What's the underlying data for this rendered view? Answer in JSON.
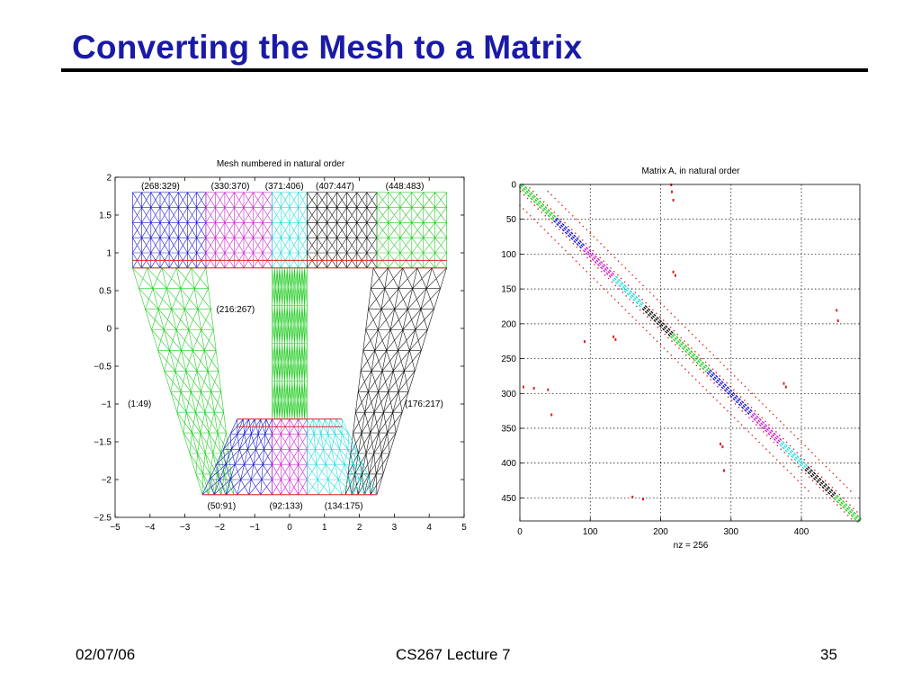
{
  "slide": {
    "title": "Converting the Mesh to a Matrix",
    "footer_date": "02/07/06",
    "footer_course": "CS267 Lecture 7",
    "page_number": "35"
  },
  "chart_data": [
    {
      "type": "diagram",
      "title": "Mesh numbered in natural order",
      "xlim": [
        -5,
        5
      ],
      "ylim": [
        -2.5,
        2
      ],
      "xticks": [
        -5,
        -4,
        -3,
        -2,
        -1,
        0,
        1,
        2,
        3,
        4,
        5
      ],
      "xtick_labels": [
        "−5",
        "−4",
        "−3",
        "−2",
        "−1",
        "0",
        "1",
        "2",
        "3",
        "4",
        "5"
      ],
      "yticks": [
        2,
        1.5,
        1,
        0.5,
        0,
        -0.5,
        -1,
        -1.5,
        -2,
        -2.5
      ],
      "ytick_labels": [
        "2",
        "1.5",
        "1",
        "0.5",
        "0",
        "−0.5",
        "−1",
        "−1.5",
        "−2",
        "−2.5"
      ],
      "colors": {
        "blue": "#1a1acc",
        "magenta": "#cc22cc",
        "cyan": "#22dddd",
        "black": "#111111",
        "green": "#22cc22",
        "red": "#dd2222"
      },
      "blocks": [
        {
          "label": "(268:329)",
          "color": "blue",
          "label_x": -3.7,
          "label_y": 1.88,
          "shape": [
            [
              -4.5,
              0.8
            ],
            [
              -2.4,
              0.8
            ],
            [
              -2.4,
              1.8
            ],
            [
              -4.5,
              1.8
            ]
          ],
          "cols": 8,
          "rows": 5
        },
        {
          "label": "(330:370)",
          "color": "magenta",
          "label_x": -1.7,
          "label_y": 1.88,
          "shape": [
            [
              -2.4,
              0.8
            ],
            [
              -0.5,
              0.8
            ],
            [
              -0.5,
              1.8
            ],
            [
              -2.4,
              1.8
            ]
          ],
          "cols": 7,
          "rows": 5
        },
        {
          "label": "(371:406)",
          "color": "cyan",
          "label_x": -0.15,
          "label_y": 1.88,
          "shape": [
            [
              -0.5,
              0.8
            ],
            [
              0.5,
              0.8
            ],
            [
              0.5,
              1.8
            ],
            [
              -0.5,
              1.8
            ]
          ],
          "cols": 4,
          "rows": 5
        },
        {
          "label": "(407:447)",
          "color": "black",
          "label_x": 1.3,
          "label_y": 1.88,
          "shape": [
            [
              0.5,
              0.8
            ],
            [
              2.5,
              0.8
            ],
            [
              2.5,
              1.8
            ],
            [
              0.5,
              1.8
            ]
          ],
          "cols": 7,
          "rows": 5
        },
        {
          "label": "(448:483)",
          "color": "green",
          "label_x": 3.3,
          "label_y": 1.88,
          "shape": [
            [
              2.5,
              0.8
            ],
            [
              4.5,
              0.8
            ],
            [
              4.5,
              1.8
            ],
            [
              2.5,
              1.8
            ]
          ],
          "cols": 6,
          "rows": 5
        },
        {
          "label": "(216:267)",
          "color": "green",
          "label_x": -1.55,
          "label_y": 0.25,
          "shape": [
            [
              -0.5,
              -1.2
            ],
            [
              -0.5,
              0.8
            ],
            [
              0.5,
              0.8
            ],
            [
              0.5,
              -1.2
            ]
          ],
          "cols": 4,
          "rows": 14
        },
        {
          "label": "(1:49)",
          "color": "green",
          "label_x": -4.3,
          "label_y": -1.0,
          "shape": [
            [
              -2.5,
              -2.2
            ],
            [
              -1.6,
              -2.2
            ],
            [
              -2.4,
              0.8
            ],
            [
              -4.5,
              0.8
            ]
          ],
          "cols": 5,
          "rows": 11
        },
        {
          "label": "(176:217)",
          "color": "black",
          "label_x": 3.85,
          "label_y": -1.0,
          "shape": [
            [
              1.6,
              -2.2
            ],
            [
              2.5,
              -2.2
            ],
            [
              4.5,
              0.8
            ],
            [
              2.4,
              0.8
            ]
          ],
          "cols": 5,
          "rows": 11
        },
        {
          "label": "(50:91)",
          "color": "blue",
          "label_x": -1.95,
          "label_y": -2.35,
          "shape": [
            [
              -2.5,
              -2.2
            ],
            [
              -0.5,
              -2.2
            ],
            [
              -0.5,
              -1.2
            ],
            [
              -1.5,
              -1.2
            ]
          ],
          "cols": 6,
          "rows": 5
        },
        {
          "label": "(92:133)",
          "color": "magenta",
          "label_x": -0.1,
          "label_y": -2.35,
          "shape": [
            [
              -0.5,
              -2.2
            ],
            [
              0.5,
              -2.2
            ],
            [
              0.5,
              -1.2
            ],
            [
              -0.5,
              -1.2
            ]
          ],
          "cols": 4,
          "rows": 5
        },
        {
          "label": "(134:175)",
          "color": "cyan",
          "label_x": 1.55,
          "label_y": -2.35,
          "shape": [
            [
              0.5,
              -2.2
            ],
            [
              2.5,
              -2.2
            ],
            [
              1.5,
              -1.2
            ],
            [
              0.5,
              -1.2
            ]
          ],
          "cols": 6,
          "rows": 5
        }
      ],
      "separators": [
        {
          "color": "red",
          "x1": -4.5,
          "y1": 0.8,
          "x2": 4.5,
          "y2": 0.8
        },
        {
          "color": "red",
          "x1": -4.5,
          "y1": 0.9,
          "x2": 4.5,
          "y2": 0.9
        },
        {
          "color": "red",
          "x1": -2.5,
          "y1": -2.2,
          "x2": 2.5,
          "y2": -2.2
        },
        {
          "color": "red",
          "x1": -1.5,
          "y1": -1.2,
          "x2": 1.5,
          "y2": -1.2
        },
        {
          "color": "red",
          "x1": -1.5,
          "y1": -1.3,
          "x2": 1.5,
          "y2": -1.3
        }
      ]
    },
    {
      "type": "scatter",
      "title": "Matrix A, in natural order",
      "xlabel": "nz = 256",
      "xlim": [
        0,
        483
      ],
      "ylim": [
        0,
        483
      ],
      "y_inverted": true,
      "grid": true,
      "xticks": [
        0,
        100,
        200,
        300,
        400
      ],
      "yticks": [
        0,
        50,
        100,
        150,
        200,
        250,
        300,
        350,
        400,
        450
      ],
      "colors": {
        "blue": "#1a1acc",
        "magenta": "#cc22cc",
        "cyan": "#22dddd",
        "black": "#111111",
        "green": "#22cc22",
        "red": "#dd2222"
      },
      "diagonal_blocks": [
        {
          "start": 1,
          "end": 49,
          "color": "green"
        },
        {
          "start": 50,
          "end": 91,
          "color": "blue"
        },
        {
          "start": 92,
          "end": 133,
          "color": "magenta"
        },
        {
          "start": 134,
          "end": 175,
          "color": "cyan"
        },
        {
          "start": 176,
          "end": 217,
          "color": "black"
        },
        {
          "start": 216,
          "end": 267,
          "color": "green"
        },
        {
          "start": 268,
          "end": 329,
          "color": "blue"
        },
        {
          "start": 330,
          "end": 370,
          "color": "magenta"
        },
        {
          "start": 371,
          "end": 406,
          "color": "cyan"
        },
        {
          "start": 407,
          "end": 447,
          "color": "black"
        },
        {
          "start": 448,
          "end": 483,
          "color": "green"
        }
      ],
      "offdiag_bands": [
        {
          "color": "red",
          "offset": 9,
          "start": 5,
          "end": 483
        },
        {
          "color": "red",
          "offset": -9,
          "start": 5,
          "end": 483
        },
        {
          "color": "red",
          "offset": 30,
          "start": 10,
          "end": 440
        },
        {
          "color": "red",
          "offset": -30,
          "start": 10,
          "end": 440
        }
      ],
      "coupling_marks": [
        {
          "x": 215,
          "y": 0
        },
        {
          "x": 216,
          "y": 10
        },
        {
          "x": 218,
          "y": 22
        },
        {
          "x": 133,
          "y": 218
        },
        {
          "x": 136,
          "y": 222
        },
        {
          "x": 218,
          "y": 125
        },
        {
          "x": 221,
          "y": 130
        },
        {
          "x": 5,
          "y": 290
        },
        {
          "x": 20,
          "y": 292
        },
        {
          "x": 40,
          "y": 294
        },
        {
          "x": 45,
          "y": 330
        },
        {
          "x": 285,
          "y": 372
        },
        {
          "x": 288,
          "y": 376
        },
        {
          "x": 375,
          "y": 285
        },
        {
          "x": 378,
          "y": 290
        },
        {
          "x": 450,
          "y": 180
        },
        {
          "x": 452,
          "y": 195
        },
        {
          "x": 160,
          "y": 448
        },
        {
          "x": 175,
          "y": 451
        },
        {
          "x": 92,
          "y": 225
        },
        {
          "x": 290,
          "y": 410
        }
      ]
    }
  ]
}
